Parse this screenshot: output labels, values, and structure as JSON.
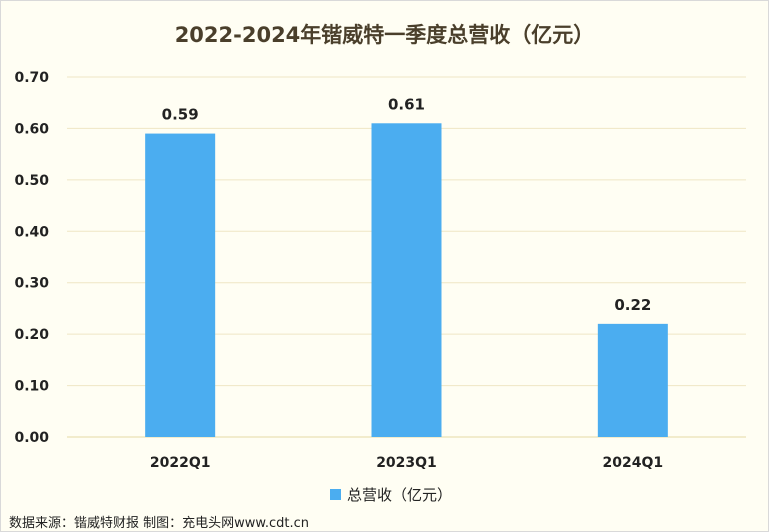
{
  "chart_data": {
    "type": "bar",
    "title": "2022-2024年锴威特一季度总营收（亿元）",
    "categories": [
      "2022Q1",
      "2023Q1",
      "2024Q1"
    ],
    "series": [
      {
        "name": "总营收（亿元）",
        "values": [
          0.59,
          0.61,
          0.22
        ],
        "color": "#4badf0"
      }
    ],
    "data_labels": [
      "0.59",
      "0.61",
      "0.22"
    ],
    "yticks": [
      "0.00",
      "0.10",
      "0.20",
      "0.30",
      "0.40",
      "0.50",
      "0.60",
      "0.70"
    ],
    "ylim": [
      0,
      0.7
    ],
    "grid": true,
    "legend_position": "bottom"
  },
  "footer": "数据来源：锴威特财报 制图：充电头网www.cdt.cn"
}
